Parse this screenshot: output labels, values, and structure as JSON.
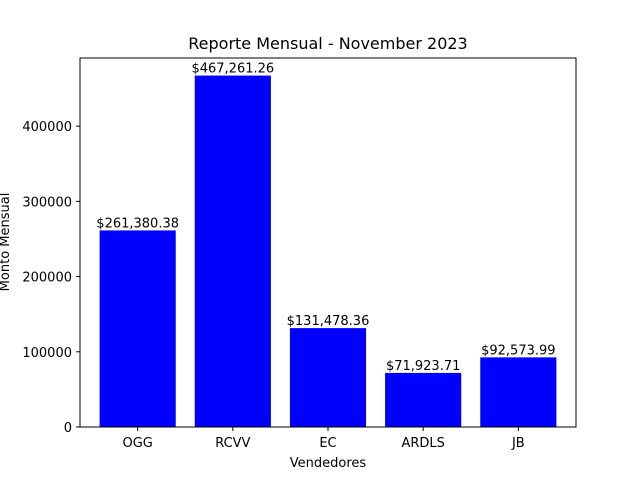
{
  "chart_data": {
    "type": "bar",
    "title": "Reporte Mensual - November 2023",
    "xlabel": "Vendedores",
    "ylabel": "Monto Mensual",
    "categories": [
      "OGG",
      "RCVV",
      "EC",
      "ARDLS",
      "JB"
    ],
    "values": [
      261380.38,
      467261.26,
      131478.36,
      71923.71,
      92573.99
    ],
    "data_labels": [
      "$261,380.38",
      "$467,261.26",
      "$131,478.36",
      "$71,923.71",
      "$92,573.99"
    ],
    "yticks": [
      0,
      100000,
      200000,
      300000,
      400000
    ],
    "ytick_labels": [
      "0",
      "100000",
      "200000",
      "300000",
      "400000"
    ],
    "ylim": [
      0,
      490624.32
    ],
    "bar_color": "#0000ff",
    "grid": false
  }
}
